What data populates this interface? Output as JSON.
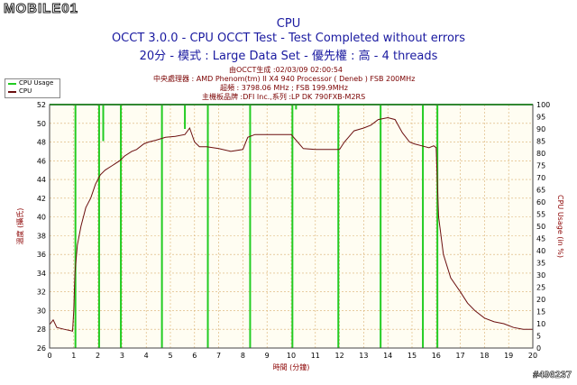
{
  "watermark": {
    "logo": "MOBILE01",
    "post_id": "#496237"
  },
  "chart_data": {
    "type": "line",
    "title": "CPU",
    "subtitle_1": "OCCT 3.0.0 - CPU OCCT Test - Test Completed without errors",
    "subtitle_2": "20分 - 模式 : Large Data Set - 優先權 : 高 - 4 threads",
    "info_lines": [
      "由OCCT生成 :02/03/09 02:00:54",
      "中央處理器 : AMD Phenom(tm) II X4 940 Processor ( Deneb ) FSB 200MHz",
      "超頻 : 3798.06 MHz ; FSB 199.9MHz",
      "主機板品牌 :DFI Inc.,系列 :LP DK 790FXB-M2RS"
    ],
    "xlabel": "時間 (分鐘)",
    "ylabel_left": "溫度 (攝氏)",
    "ylabel_right": "CPU Usage (in %)",
    "xlim": [
      0,
      20
    ],
    "ylim_left": [
      26,
      52
    ],
    "ylim_right": [
      0,
      100
    ],
    "x_ticks": [
      "0",
      "1",
      "2",
      "3",
      "4",
      "5",
      "6",
      "7",
      "8",
      "9",
      "10",
      "11",
      "12",
      "13",
      "14",
      "15",
      "16",
      "17",
      "18",
      "19",
      "20"
    ],
    "y_left_ticks": [
      "26",
      "28",
      "30",
      "32",
      "34",
      "36",
      "38",
      "40",
      "42",
      "44",
      "46",
      "48",
      "50",
      "52"
    ],
    "y_right_ticks": [
      "0",
      "5",
      "10",
      "15",
      "20",
      "25",
      "30",
      "35",
      "40",
      "45",
      "50",
      "55",
      "60",
      "65",
      "70",
      "75",
      "80",
      "85",
      "90",
      "95",
      "100"
    ],
    "grid": true,
    "legend": [
      "CPU Usage",
      "CPU"
    ],
    "colors": {
      "usage": "#22cc22",
      "temp": "#6b0f0f",
      "plot_bg": "#fffdf2",
      "grid": "#d9b070",
      "title": "#1a1aa0"
    },
    "series": [
      {
        "name": "CPU",
        "axis": "left",
        "x": [
          0,
          0.15,
          0.3,
          0.6,
          0.95,
          1.0,
          1.05,
          1.15,
          1.3,
          1.5,
          1.7,
          1.9,
          2.1,
          2.3,
          2.6,
          2.9,
          3.1,
          3.4,
          3.6,
          3.9,
          4.1,
          4.4,
          4.8,
          5.2,
          5.6,
          5.8,
          6.0,
          6.2,
          6.5,
          7.0,
          7.5,
          8.0,
          8.2,
          8.5,
          9.0,
          9.5,
          10.0,
          10.2,
          10.5,
          11.0,
          11.5,
          12.0,
          12.2,
          12.6,
          13.0,
          13.3,
          13.6,
          14.0,
          14.3,
          14.6,
          14.9,
          15.1,
          15.4,
          15.7,
          15.9,
          16.0,
          16.1,
          16.3,
          16.6,
          17.0,
          17.3,
          17.6,
          18.0,
          18.4,
          18.8,
          19.2,
          19.6,
          20.0
        ],
        "values": [
          28.5,
          29,
          28.2,
          28,
          27.8,
          30,
          34,
          37,
          39,
          41,
          42,
          43.5,
          44.5,
          45,
          45.5,
          46,
          46.5,
          47,
          47.2,
          47.8,
          48,
          48.2,
          48.5,
          48.6,
          48.8,
          49.5,
          48,
          47.5,
          47.5,
          47.3,
          47,
          47.2,
          48.5,
          48.8,
          48.8,
          48.8,
          48.8,
          48.2,
          47.3,
          47.2,
          47.2,
          47.2,
          48,
          49.2,
          49.5,
          49.8,
          50.4,
          50.6,
          50.4,
          49,
          48,
          47.8,
          47.6,
          47.4,
          47.6,
          47.4,
          40,
          36,
          33.5,
          32,
          30.8,
          30,
          29.2,
          28.8,
          28.6,
          28.2,
          28,
          28
        ]
      },
      {
        "name": "CPU Usage",
        "axis": "right",
        "baseline": 100,
        "dips": [
          {
            "x": 1.07,
            "value": 0
          },
          {
            "x": 2.05,
            "value": 0
          },
          {
            "x": 2.22,
            "value": 85
          },
          {
            "x": 2.95,
            "value": 0
          },
          {
            "x": 4.65,
            "value": 0
          },
          {
            "x": 5.6,
            "value": 90
          },
          {
            "x": 6.55,
            "value": 0
          },
          {
            "x": 8.3,
            "value": 0
          },
          {
            "x": 10.05,
            "value": 0
          },
          {
            "x": 10.2,
            "value": 98
          },
          {
            "x": 11.95,
            "value": 0
          },
          {
            "x": 13.7,
            "value": 0
          },
          {
            "x": 15.45,
            "value": 0
          },
          {
            "x": 16.05,
            "value": 0
          }
        ]
      }
    ]
  }
}
